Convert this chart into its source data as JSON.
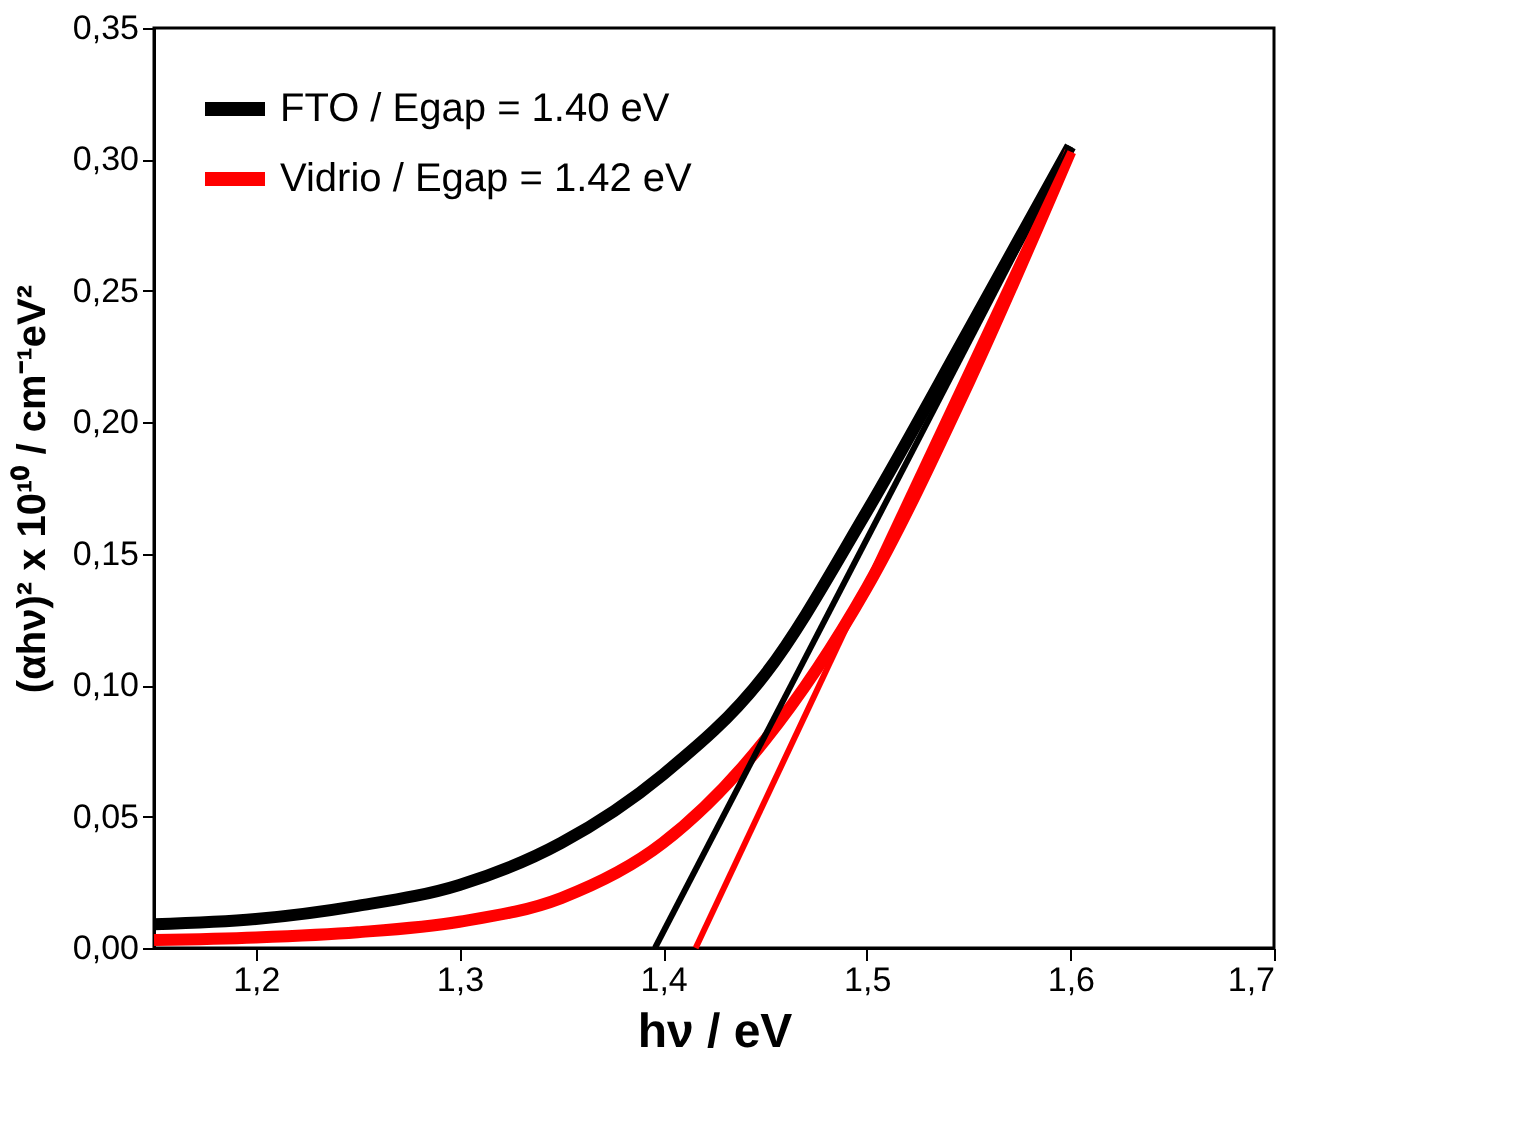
{
  "chart_data": {
    "type": "line",
    "xlabel": "hν / eV",
    "ylabel": "(αhν)² x 10¹⁰ / cm⁻¹eV²",
    "xlim": [
      1.15,
      1.7
    ],
    "ylim": [
      0,
      0.35
    ],
    "xticks": [
      {
        "value": 1.2,
        "label": "1,2"
      },
      {
        "value": 1.3,
        "label": "1,3"
      },
      {
        "value": 1.4,
        "label": "1,4"
      },
      {
        "value": 1.5,
        "label": "1,5"
      },
      {
        "value": 1.6,
        "label": "1,6"
      },
      {
        "value": 1.7,
        "label": "1,7"
      }
    ],
    "yticks": [
      {
        "value": 0,
        "label": "0,00"
      },
      {
        "value": 0.05,
        "label": "0,05"
      },
      {
        "value": 0.1,
        "label": "0,10"
      },
      {
        "value": 0.15,
        "label": "0,15"
      },
      {
        "value": 0.2,
        "label": "0,20"
      },
      {
        "value": 0.25,
        "label": "0,25"
      },
      {
        "value": 0.3,
        "label": "0,30"
      },
      {
        "value": 0.35,
        "label": "0,35"
      }
    ],
    "grid": false,
    "legend": "top left",
    "marker": "none",
    "line_style": "solid",
    "series": [
      {
        "name": "FTO / Egap = 1.40 eV",
        "color": "#000000",
        "x": [
          1.15,
          1.2,
          1.25,
          1.3,
          1.35,
          1.4,
          1.45,
          1.5,
          1.55,
          1.6
        ],
        "values": [
          0.009,
          0.011,
          0.016,
          0.024,
          0.04,
          0.066,
          0.104,
          0.166,
          0.235,
          0.305
        ]
      },
      {
        "name": "Vidrio / Egap = 1.42 eV",
        "color": "#ff0000",
        "x": [
          1.15,
          1.2,
          1.25,
          1.3,
          1.35,
          1.4,
          1.45,
          1.5,
          1.55,
          1.6
        ],
        "values": [
          0.003,
          0.004,
          0.006,
          0.01,
          0.019,
          0.04,
          0.079,
          0.137,
          0.215,
          0.303
        ]
      },
      {
        "color": "#000000",
        "x": [
          1.396,
          1.6
        ],
        "values": [
          0,
          0.305
        ]
      },
      {
        "color": "#ff0000",
        "x": [
          1.416,
          1.6
        ],
        "values": [
          0,
          0.303
        ]
      }
    ]
  }
}
